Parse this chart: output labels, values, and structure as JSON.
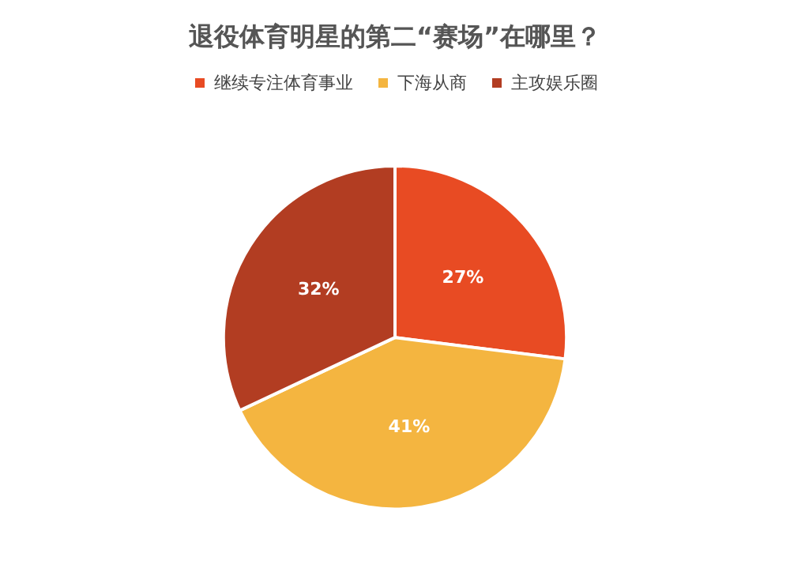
{
  "chart_data": {
    "type": "pie",
    "title": "退役体育明星的第二“赛场”在哪里？",
    "categories": [
      "继续专注体育事业",
      "下海从商",
      "主攻娱乐圈"
    ],
    "values": [
      27,
      41,
      32
    ],
    "colors": [
      "#e84b23",
      "#f4b540",
      "#b23d22"
    ],
    "value_labels": [
      "27%",
      "41%",
      "32%"
    ],
    "legend": "top"
  }
}
